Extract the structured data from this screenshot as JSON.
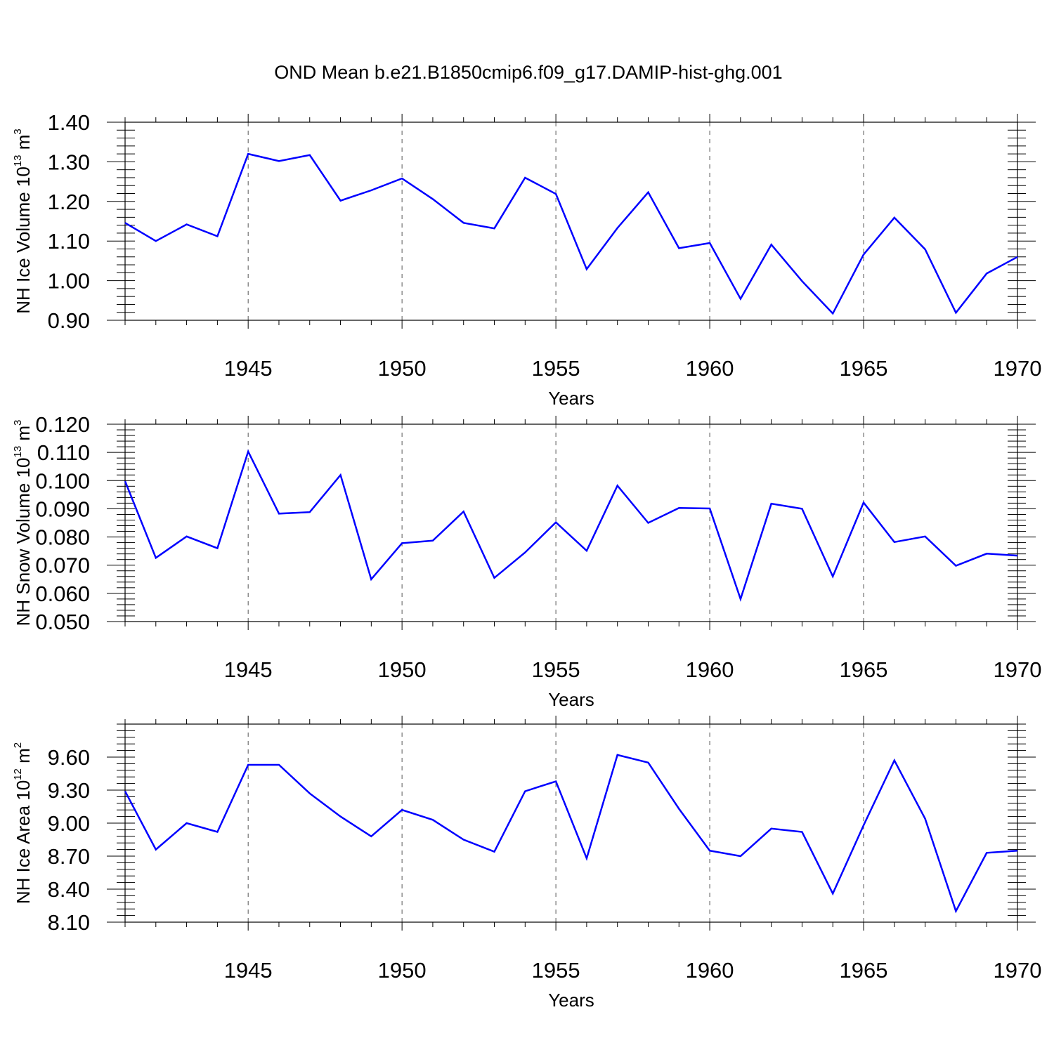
{
  "title": "OND Mean b.e21.B1850cmip6.f09_g17.DAMIP-hist-ghg.001",
  "colors": {
    "line": "#0000ff",
    "axis": "#000000",
    "grid": "#555555"
  },
  "chart_data": [
    {
      "type": "line",
      "ylabel": {
        "text": "NH Ice Volume 10",
        "sup": "13",
        "unit": " m",
        "unit_sup": "3"
      },
      "xlabel": "Years",
      "xlim": [
        1941,
        1970
      ],
      "ylim": [
        0.9,
        1.4
      ],
      "yticks": [
        0.9,
        1.0,
        1.1,
        1.2,
        1.3,
        1.4
      ],
      "ytick_labels": [
        "0.90",
        "1.00",
        "1.10",
        "1.20",
        "1.30",
        "1.40"
      ],
      "xticks": [
        1945,
        1950,
        1955,
        1960,
        1965,
        1970
      ],
      "xtick_labels": [
        "1945",
        "1950",
        "1955",
        "1960",
        "1965",
        "1970"
      ],
      "grid": "vertical dashed at labeled years",
      "x": [
        1941,
        1942,
        1943,
        1944,
        1945,
        1946,
        1947,
        1948,
        1949,
        1950,
        1951,
        1952,
        1953,
        1954,
        1955,
        1956,
        1957,
        1958,
        1959,
        1960,
        1961,
        1962,
        1963,
        1964,
        1965,
        1966,
        1967,
        1968,
        1969,
        1970
      ],
      "series": [
        {
          "values": [
            1.146,
            1.1,
            1.142,
            1.112,
            1.32,
            1.302,
            1.317,
            1.202,
            1.228,
            1.258,
            1.206,
            1.146,
            1.132,
            1.26,
            1.219,
            1.029,
            1.133,
            1.223,
            1.082,
            1.095,
            0.954,
            1.091,
            0.999,
            0.917,
            1.066,
            1.159,
            1.079,
            0.919,
            1.018,
            1.06
          ]
        }
      ]
    },
    {
      "type": "line",
      "ylabel": {
        "text": "NH Snow Volume 10",
        "sup": "13",
        "unit": " m",
        "unit_sup": "3"
      },
      "xlabel": "Years",
      "xlim": [
        1941,
        1970
      ],
      "ylim": [
        0.05,
        0.12
      ],
      "yticks": [
        0.05,
        0.06,
        0.07,
        0.08,
        0.09,
        0.1,
        0.11,
        0.12
      ],
      "ytick_labels": [
        "0.050",
        "0.060",
        "0.070",
        "0.080",
        "0.090",
        "0.100",
        "0.110",
        "0.120"
      ],
      "xticks": [
        1945,
        1950,
        1955,
        1960,
        1965,
        1970
      ],
      "xtick_labels": [
        "1945",
        "1950",
        "1955",
        "1960",
        "1965",
        "1970"
      ],
      "grid": "vertical dashed at labeled years",
      "x": [
        1941,
        1942,
        1943,
        1944,
        1945,
        1946,
        1947,
        1948,
        1949,
        1950,
        1951,
        1952,
        1953,
        1954,
        1955,
        1956,
        1957,
        1958,
        1959,
        1960,
        1961,
        1962,
        1963,
        1964,
        1965,
        1966,
        1967,
        1968,
        1969,
        1970
      ],
      "series": [
        {
          "values": [
            0.0998,
            0.0726,
            0.0802,
            0.076,
            0.1103,
            0.0883,
            0.0888,
            0.102,
            0.065,
            0.0778,
            0.0787,
            0.089,
            0.0655,
            0.0745,
            0.0852,
            0.0751,
            0.0982,
            0.085,
            0.0903,
            0.0901,
            0.058,
            0.0918,
            0.09,
            0.066,
            0.0922,
            0.0782,
            0.0802,
            0.0698,
            0.0741,
            0.0734
          ]
        }
      ]
    },
    {
      "type": "line",
      "ylabel": {
        "text": "NH Ice Area 10",
        "sup": "12",
        "unit": " m",
        "unit_sup": "2"
      },
      "xlabel": "Years",
      "xlim": [
        1941,
        1970
      ],
      "ylim": [
        8.1,
        9.9
      ],
      "yticks": [
        8.1,
        8.4,
        8.7,
        9.0,
        9.3,
        9.6
      ],
      "ytick_labels": [
        "8.10",
        "8.40",
        "8.70",
        "9.00",
        "9.30",
        "9.60"
      ],
      "xticks": [
        1945,
        1950,
        1955,
        1960,
        1965,
        1970
      ],
      "xtick_labels": [
        "1945",
        "1950",
        "1955",
        "1960",
        "1965",
        "1970"
      ],
      "grid": "vertical dashed at labeled years",
      "x": [
        1941,
        1942,
        1943,
        1944,
        1945,
        1946,
        1947,
        1948,
        1949,
        1950,
        1951,
        1952,
        1953,
        1954,
        1955,
        1956,
        1957,
        1958,
        1959,
        1960,
        1961,
        1962,
        1963,
        1964,
        1965,
        1966,
        1967,
        1968,
        1969,
        1970
      ],
      "series": [
        {
          "values": [
            9.29,
            8.76,
            9.0,
            8.92,
            9.53,
            9.53,
            9.27,
            9.06,
            8.88,
            9.12,
            9.03,
            8.85,
            8.74,
            9.29,
            9.38,
            8.68,
            9.62,
            9.55,
            9.13,
            8.75,
            8.7,
            8.95,
            8.92,
            8.36,
            8.98,
            9.57,
            9.04,
            8.2,
            8.73,
            8.75
          ]
        }
      ]
    }
  ]
}
